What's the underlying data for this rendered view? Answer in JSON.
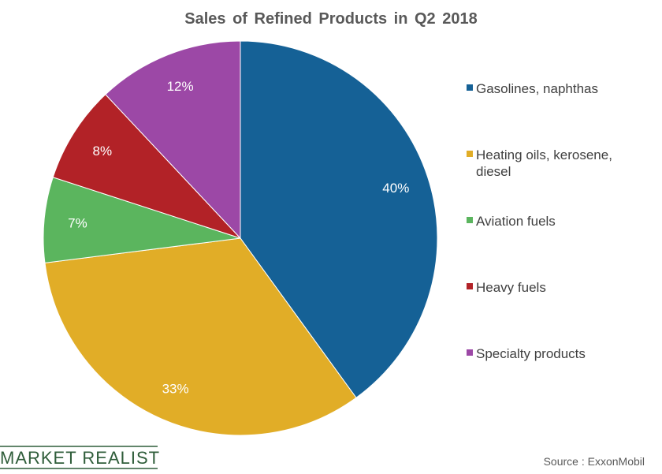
{
  "chart_data": {
    "type": "pie",
    "title": "Sales of Refined Products in Q2 2018",
    "slices": [
      {
        "name": "Gasolines, naphthas",
        "value": 40,
        "label": "40%",
        "color": "#156196",
        "legend_lines": [
          "Gasolines, naphthas"
        ]
      },
      {
        "name": "Heating oils, kerosene, diesel",
        "value": 33,
        "label": "33%",
        "color": "#e1ad27",
        "legend_lines": [
          "Heating oils, kerosene,",
          "diesel"
        ]
      },
      {
        "name": "Aviation fuels",
        "value": 7,
        "label": "7%",
        "color": "#5bb55e",
        "legend_lines": [
          "Aviation fuels"
        ]
      },
      {
        "name": "Heavy fuels",
        "value": 8,
        "label": "8%",
        "color": "#b22227",
        "legend_lines": [
          "Heavy fuels"
        ]
      },
      {
        "name": "Specialty products",
        "value": 12,
        "label": "12%",
        "color": "#9c48a6",
        "legend_lines": [
          "Specialty products"
        ]
      }
    ],
    "legend_position": "right"
  },
  "source": "Source : ExxonMobil",
  "logo": "MARKET REALIST"
}
